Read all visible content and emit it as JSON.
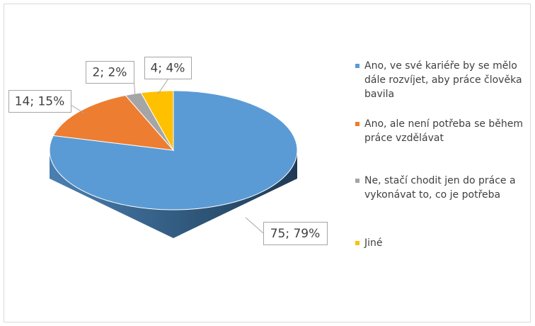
{
  "chart_data": {
    "type": "pie",
    "categories": [
      "Ano, ve své kariéře by se mělo dále rozvíjet, aby práce člověka bavila",
      "Ano, ale není potřeba se během práce vzdělávat",
      "Ne, stačí chodit jen do práce a vykonávat to, co je potřeba",
      "Jiné"
    ],
    "values": [
      75,
      14,
      2,
      4
    ],
    "value_labels": [
      "75; 79%",
      "14; 15%",
      "2; 2%",
      "4; 4%"
    ],
    "colors": [
      "#5b9bd5",
      "#ed7d31",
      "#a5a5a5",
      "#ffc000"
    ],
    "legend": "right"
  }
}
